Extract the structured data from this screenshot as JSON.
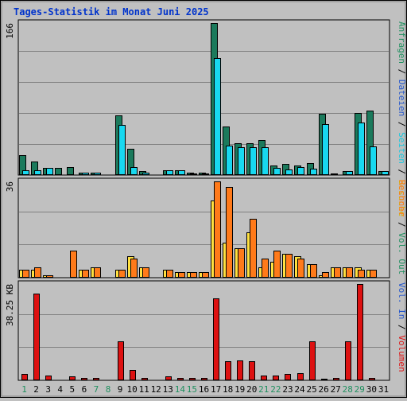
{
  "chart_data": {
    "type": "bar",
    "title": "Tages-Statistik im Monat Juni 2025",
    "days": [
      "1",
      "2",
      "3",
      "4",
      "5",
      "6",
      "7",
      "8",
      "9",
      "10",
      "11",
      "12",
      "13",
      "14",
      "15",
      "16",
      "17",
      "18",
      "19",
      "20",
      "21",
      "22",
      "23",
      "24",
      "25",
      "26",
      "27",
      "28",
      "29",
      "30",
      "31"
    ],
    "weekend_days": [
      "1",
      "7",
      "8",
      "14",
      "15",
      "21",
      "22",
      "28",
      "29"
    ],
    "colors": {
      "title": "#0033cc",
      "weekday_label": "#000000",
      "weekend_label": "#209060",
      "anfragen": "#1b7a5c",
      "dateien": "#18d8f0",
      "seiten": "#30e0f0",
      "besuche": "#ffe040",
      "rechner": "#ff7a1a",
      "volumen": "#dd1111",
      "vol_in": "#2255cc",
      "vol_out": "#209060"
    },
    "panels": [
      {
        "name": "hits",
        "ymax_label": "166",
        "ymax": 166,
        "right_label": [
          {
            "text": "Anfragen",
            "color": "#209060"
          },
          {
            "text": " / ",
            "color": "#000000"
          },
          {
            "text": "Dateien",
            "color": "#2255cc"
          },
          {
            "text": " / ",
            "color": "#000000"
          },
          {
            "text": "Seiten",
            "color": "#18c8e0"
          },
          {
            "text": " / ",
            "color": "#000000"
          },
          {
            "text": "Besuche",
            "color": "#d4b000"
          }
        ],
        "series": [
          {
            "key": "anfragen",
            "values": [
              22,
              15,
              8,
              8,
              9,
              3,
              3,
              0,
              65,
              29,
              4,
              0,
              5,
              5,
              3,
              3,
              166,
              53,
              35,
              35,
              38,
              10,
              12,
              10,
              13,
              67,
              2,
              4,
              68,
              70,
              4
            ]
          },
          {
            "key": "dateien",
            "values": [
              5,
              5,
              8,
              0,
              0,
              3,
              3,
              0,
              55,
              9,
              3,
              0,
              5,
              5,
              2,
              2,
              128,
              32,
              30,
              30,
              30,
              8,
              6,
              9,
              7,
              56,
              0,
              4,
              57,
              31,
              4
            ]
          }
        ]
      },
      {
        "name": "visits",
        "ymax_label": "36",
        "ymax": 36,
        "right_label": [
          {
            "text": "Rechner",
            "color": "#ff7a1a"
          },
          {
            "text": " / ",
            "color": "#000000"
          },
          {
            "text": "Vol. Out",
            "color": "#209060"
          }
        ],
        "series": [
          {
            "key": "besuche",
            "values": [
              3,
              3,
              1,
              0,
              0,
              3,
              4,
              0,
              3,
              8,
              4,
              0,
              3,
              2,
              2,
              2,
              29,
              13,
              11,
              17,
              4,
              6,
              9,
              8,
              5,
              1,
              4,
              4,
              4,
              3,
              0
            ]
          },
          {
            "key": "rechner",
            "values": [
              3,
              4,
              1,
              0,
              10,
              3,
              4,
              0,
              3,
              7,
              4,
              0,
              3,
              2,
              2,
              2,
              36,
              34,
              11,
              22,
              7,
              10,
              9,
              7,
              5,
              2,
              4,
              4,
              3,
              3,
              0
            ]
          }
        ]
      },
      {
        "name": "volume",
        "ymax_label": "38.25 KB",
        "ymax": 38.25,
        "right_label": [
          {
            "text": "Vol. In",
            "color": "#2255cc"
          },
          {
            "text": " / ",
            "color": "#000000"
          },
          {
            "text": "Volumen",
            "color": "#dd1111"
          }
        ],
        "series": [
          {
            "key": "volumen",
            "values": [
              2.5,
              34.5,
              2,
              0,
              1.5,
              1,
              1,
              0,
              15.5,
              4,
              1,
              0,
              1.5,
              1,
              1,
              1,
              32.5,
              7.5,
              8,
              7.5,
              2,
              2,
              2.5,
              3,
              15.5,
              0.5,
              1,
              15.5,
              38.25,
              1,
              0
            ]
          }
        ]
      }
    ]
  }
}
